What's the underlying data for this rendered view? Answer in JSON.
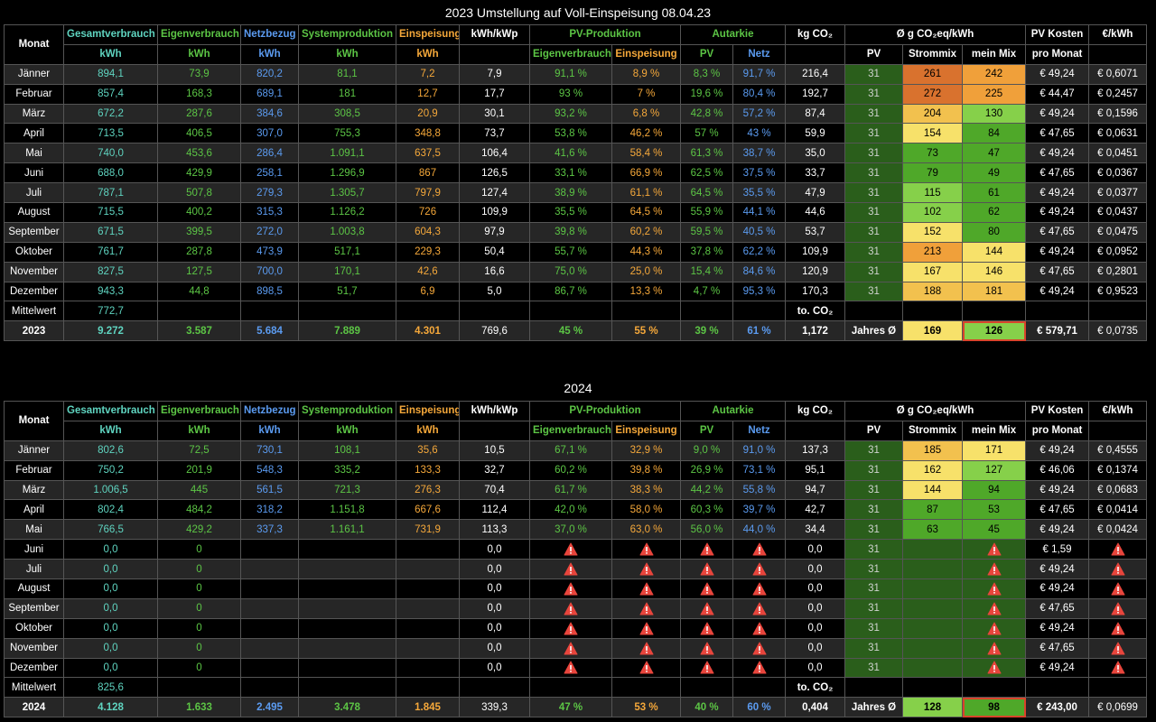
{
  "heat_colors": {
    "dark_green": "#2e6b1f",
    "green": "#4fa829",
    "light_green": "#86d04a",
    "yellow": "#f7e16a",
    "gold": "#f2c14e",
    "orange": "#f0a03a",
    "dark_orange": "#d9722e",
    "pv_green": "#2a5e1b",
    "highlight_border": "#d9442b"
  },
  "tables": [
    {
      "title": "2023 Umstellung auf Voll-Einspeisung 08.04.23",
      "header1": [
        "Monat",
        "Gesamtverbrauch",
        "Eigenverbrauch",
        "Netzbezug",
        "Systemproduktion",
        "Einspeisung",
        "kWh/kWp",
        "PV-Produktion",
        "Autarkie",
        "kg CO₂",
        "Ø g CO₂eq/kWh",
        "PV Kosten",
        "€/kWh"
      ],
      "header2": [
        "kWh",
        "kWh",
        "kWh",
        "kWh",
        "kWh",
        "Eigenverbrauch",
        "Einspeisung",
        "PV",
        "Netz",
        "PV",
        "Strommix",
        "mein Mix",
        "pro Monat"
      ],
      "rows": [
        {
          "m": "Jänner",
          "c": [
            "894,1",
            "73,9",
            "820,2",
            "81,1",
            "7,2",
            "7,9",
            "91,1 %",
            "8,9 %",
            "8,3 %",
            "91,7 %",
            "216,4",
            "31",
            "261",
            "242",
            "€ 49,24",
            "€ 0,6071"
          ],
          "h": [
            "dark_orange",
            "orange"
          ]
        },
        {
          "m": "Februar",
          "c": [
            "857,4",
            "168,3",
            "689,1",
            "181",
            "12,7",
            "17,7",
            "93 %",
            "7 %",
            "19,6 %",
            "80,4 %",
            "192,7",
            "31",
            "272",
            "225",
            "€ 44,47",
            "€ 0,2457"
          ],
          "h": [
            "dark_orange",
            "orange"
          ]
        },
        {
          "m": "März",
          "c": [
            "672,2",
            "287,6",
            "384,6",
            "308,5",
            "20,9",
            "30,1",
            "93,2 %",
            "6,8 %",
            "42,8 %",
            "57,2 %",
            "87,4",
            "31",
            "204",
            "130",
            "€ 49,24",
            "€ 0,1596"
          ],
          "h": [
            "gold",
            "light_green"
          ]
        },
        {
          "m": "April",
          "c": [
            "713,5",
            "406,5",
            "307,0",
            "755,3",
            "348,8",
            "73,7",
            "53,8 %",
            "46,2 %",
            "57 %",
            "43 %",
            "59,9",
            "31",
            "154",
            "84",
            "€ 47,65",
            "€ 0,0631"
          ],
          "h": [
            "yellow",
            "green"
          ]
        },
        {
          "m": "Mai",
          "c": [
            "740,0",
            "453,6",
            "286,4",
            "1.091,1",
            "637,5",
            "106,4",
            "41,6 %",
            "58,4 %",
            "61,3 %",
            "38,7 %",
            "35,0",
            "31",
            "73",
            "47",
            "€ 49,24",
            "€ 0,0451"
          ],
          "h": [
            "green",
            "green"
          ]
        },
        {
          "m": "Juni",
          "c": [
            "688,0",
            "429,9",
            "258,1",
            "1.296,9",
            "867",
            "126,5",
            "33,1 %",
            "66,9 %",
            "62,5 %",
            "37,5 %",
            "33,7",
            "31",
            "79",
            "49",
            "€ 47,65",
            "€ 0,0367"
          ],
          "h": [
            "green",
            "green"
          ]
        },
        {
          "m": "Juli",
          "c": [
            "787,1",
            "507,8",
            "279,3",
            "1.305,7",
            "797,9",
            "127,4",
            "38,9 %",
            "61,1 %",
            "64,5 %",
            "35,5 %",
            "47,9",
            "31",
            "115",
            "61",
            "€ 49,24",
            "€ 0,0377"
          ],
          "h": [
            "light_green",
            "green"
          ]
        },
        {
          "m": "August",
          "c": [
            "715,5",
            "400,2",
            "315,3",
            "1.126,2",
            "726",
            "109,9",
            "35,5 %",
            "64,5 %",
            "55,9 %",
            "44,1 %",
            "44,6",
            "31",
            "102",
            "62",
            "€ 49,24",
            "€ 0,0437"
          ],
          "h": [
            "light_green",
            "green"
          ]
        },
        {
          "m": "September",
          "c": [
            "671,5",
            "399,5",
            "272,0",
            "1.003,8",
            "604,3",
            "97,9",
            "39,8 %",
            "60,2 %",
            "59,5 %",
            "40,5 %",
            "53,7",
            "31",
            "152",
            "80",
            "€ 47,65",
            "€ 0,0475"
          ],
          "h": [
            "yellow",
            "green"
          ]
        },
        {
          "m": "Oktober",
          "c": [
            "761,7",
            "287,8",
            "473,9",
            "517,1",
            "229,3",
            "50,4",
            "55,7 %",
            "44,3 %",
            "37,8 %",
            "62,2 %",
            "109,9",
            "31",
            "213",
            "144",
            "€ 49,24",
            "€ 0,0952"
          ],
          "h": [
            "orange",
            "yellow"
          ]
        },
        {
          "m": "November",
          "c": [
            "827,5",
            "127,5",
            "700,0",
            "170,1",
            "42,6",
            "16,6",
            "75,0 %",
            "25,0 %",
            "15,4 %",
            "84,6 %",
            "120,9",
            "31",
            "167",
            "146",
            "€ 47,65",
            "€ 0,2801"
          ],
          "h": [
            "yellow",
            "yellow"
          ]
        },
        {
          "m": "Dezember",
          "c": [
            "943,3",
            "44,8",
            "898,5",
            "51,7",
            "6,9",
            "5,0",
            "86,7 %",
            "13,3 %",
            "4,7 %",
            "95,3 %",
            "170,3",
            "31",
            "188",
            "181",
            "€ 49,24",
            "€ 0,9523"
          ],
          "h": [
            "gold",
            "gold"
          ]
        }
      ],
      "mittel": {
        "label": "Mittelwert",
        "value": "772,7",
        "co2_label": "to. CO₂"
      },
      "total": {
        "m": "2023",
        "c": [
          "9.272",
          "3.587",
          "5.684",
          "7.889",
          "4.301",
          "769,6",
          "45 %",
          "55 %",
          "39 %",
          "61 %",
          "1,172",
          "Jahres Ø",
          "169",
          "126",
          "€ 579,71",
          "€ 0,0735"
        ],
        "h": [
          "yellow",
          "light_green"
        ]
      }
    },
    {
      "title": "2024",
      "header1": [
        "Monat",
        "Gesamtverbrauch",
        "Eigenverbrauch",
        "Netzbezug",
        "Systemproduktion",
        "Einspeisung",
        "kWh/kWp",
        "PV-Produktion",
        "Autarkie",
        "kg CO₂",
        "Ø g CO₂eq/kWh",
        "PV Kosten",
        "€/kWh"
      ],
      "header2": [
        "kWh",
        "kWh",
        "kWh",
        "kWh",
        "kWh",
        "Eigenverbrauch",
        "Einspeisung",
        "PV",
        "Netz",
        "PV",
        "Strommix",
        "mein Mix",
        "pro Monat"
      ],
      "rows": [
        {
          "m": "Jänner",
          "c": [
            "802,6",
            "72,5",
            "730,1",
            "108,1",
            "35,6",
            "10,5",
            "67,1 %",
            "32,9 %",
            "9,0 %",
            "91,0 %",
            "137,3",
            "31",
            "185",
            "171",
            "€ 49,24",
            "€ 0,4555"
          ],
          "h": [
            "gold",
            "yellow"
          ]
        },
        {
          "m": "Februar",
          "c": [
            "750,2",
            "201,9",
            "548,3",
            "335,2",
            "133,3",
            "32,7",
            "60,2 %",
            "39,8 %",
            "26,9 %",
            "73,1 %",
            "95,1",
            "31",
            "162",
            "127",
            "€ 46,06",
            "€ 0,1374"
          ],
          "h": [
            "yellow",
            "light_green"
          ]
        },
        {
          "m": "März",
          "c": [
            "1.006,5",
            "445",
            "561,5",
            "721,3",
            "276,3",
            "70,4",
            "61,7 %",
            "38,3 %",
            "44,2 %",
            "55,8 %",
            "94,7",
            "31",
            "144",
            "94",
            "€ 49,24",
            "€ 0,0683"
          ],
          "h": [
            "yellow",
            "green"
          ]
        },
        {
          "m": "April",
          "c": [
            "802,4",
            "484,2",
            "318,2",
            "1.151,8",
            "667,6",
            "112,4",
            "42,0 %",
            "58,0 %",
            "60,3 %",
            "39,7 %",
            "42,7",
            "31",
            "87",
            "53",
            "€ 47,65",
            "€ 0,0414"
          ],
          "h": [
            "green",
            "green"
          ]
        },
        {
          "m": "Mai",
          "c": [
            "766,5",
            "429,2",
            "337,3",
            "1.161,1",
            "731,9",
            "113,3",
            "37,0 %",
            "63,0 %",
            "56,0 %",
            "44,0 %",
            "34,4",
            "31",
            "63",
            "45",
            "€ 49,24",
            "€ 0,0424"
          ],
          "h": [
            "green",
            "green"
          ]
        },
        {
          "m": "Juni",
          "c": [
            "0,0",
            "0",
            "",
            "",
            "",
            "0,0",
            "!",
            "!",
            "!",
            "!",
            "0,0",
            "31",
            "",
            "!",
            "€ 1,59",
            "!"
          ],
          "h": [
            "empty",
            "empty"
          ]
        },
        {
          "m": "Juli",
          "c": [
            "0,0",
            "0",
            "",
            "",
            "",
            "0,0",
            "!",
            "!",
            "!",
            "!",
            "0,0",
            "31",
            "",
            "!",
            "€ 49,24",
            "!"
          ],
          "h": [
            "empty",
            "empty"
          ]
        },
        {
          "m": "August",
          "c": [
            "0,0",
            "0",
            "",
            "",
            "",
            "0,0",
            "!",
            "!",
            "!",
            "!",
            "0,0",
            "31",
            "",
            "!",
            "€ 49,24",
            "!"
          ],
          "h": [
            "empty",
            "empty"
          ]
        },
        {
          "m": "September",
          "c": [
            "0,0",
            "0",
            "",
            "",
            "",
            "0,0",
            "!",
            "!",
            "!",
            "!",
            "0,0",
            "31",
            "",
            "!",
            "€ 47,65",
            "!"
          ],
          "h": [
            "empty",
            "empty"
          ]
        },
        {
          "m": "Oktober",
          "c": [
            "0,0",
            "0",
            "",
            "",
            "",
            "0,0",
            "!",
            "!",
            "!",
            "!",
            "0,0",
            "31",
            "",
            "!",
            "€ 49,24",
            "!"
          ],
          "h": [
            "empty",
            "empty"
          ]
        },
        {
          "m": "November",
          "c": [
            "0,0",
            "0",
            "",
            "",
            "",
            "0,0",
            "!",
            "!",
            "!",
            "!",
            "0,0",
            "31",
            "",
            "!",
            "€ 47,65",
            "!"
          ],
          "h": [
            "empty",
            "empty"
          ]
        },
        {
          "m": "Dezember",
          "c": [
            "0,0",
            "0",
            "",
            "",
            "",
            "0,0",
            "!",
            "!",
            "!",
            "!",
            "0,0",
            "31",
            "",
            "!",
            "€ 49,24",
            "!"
          ],
          "h": [
            "empty",
            "empty"
          ]
        }
      ],
      "mittel": {
        "label": "Mittelwert",
        "value": "825,6",
        "co2_label": "to. CO₂"
      },
      "total": {
        "m": "2024",
        "c": [
          "4.128",
          "1.633",
          "2.495",
          "3.478",
          "1.845",
          "339,3",
          "47 %",
          "53 %",
          "40 %",
          "60 %",
          "0,404",
          "Jahres Ø",
          "128",
          "98",
          "€ 243,00",
          "€ 0,0699"
        ],
        "h": [
          "light_green",
          "green"
        ]
      }
    }
  ]
}
